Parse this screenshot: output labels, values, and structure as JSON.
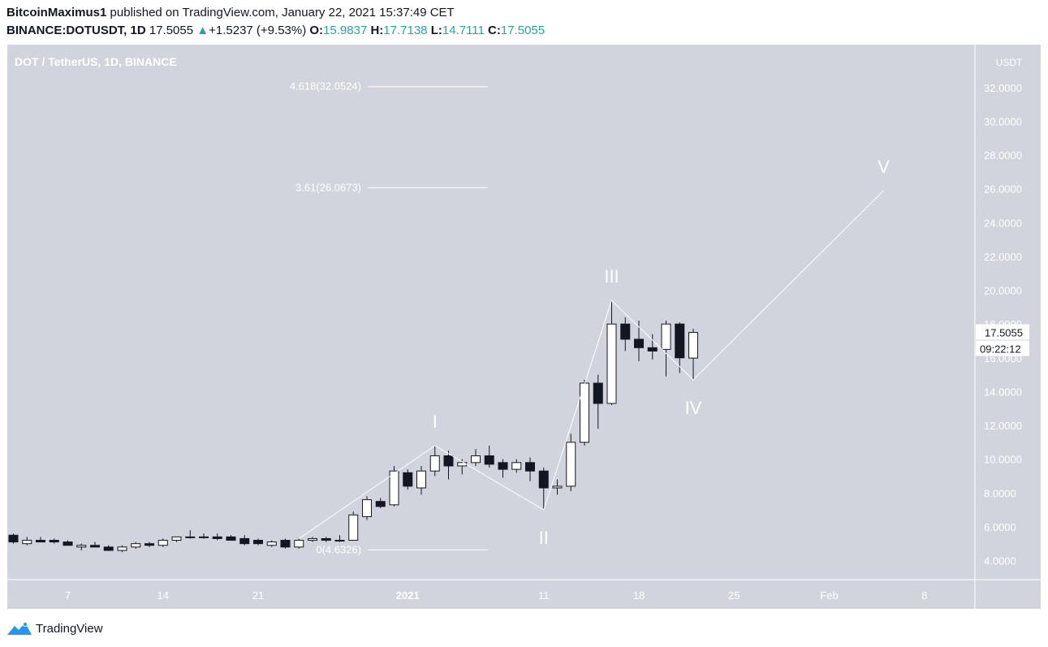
{
  "header": {
    "author": "BitcoinMaximus1",
    "published_text": "published on TradingView.com, January 22, 2021 15:37:49 CET",
    "symbol": "BINANCE:DOTUSDT, 1D",
    "last": "17.5055",
    "up_arrow": "▲",
    "change": "+1.5237 (+9.53%)",
    "o_label": "O:",
    "o_value": "15.9837",
    "h_label": "H:",
    "h_value": "17.7138",
    "l_label": "L:",
    "l_value": "14.7111",
    "c_label": "C:",
    "c_value": "17.5055"
  },
  "footer": {
    "brand": "TradingView",
    "logo_icon": "tradingview-logo-icon"
  },
  "colors": {
    "plot_bg": "#d1d4dc",
    "axis_bg": "#d1d4dc",
    "up": "#26a69a",
    "candle_up_fill": "#ffffff",
    "candle_down_fill": "#131722",
    "wave": "#ffffff"
  },
  "chart_data": {
    "type": "candlestick",
    "title": "DOT / TetherUS, 1D, BINANCE",
    "currency": "USDT",
    "y_ticks": [
      "4.0000",
      "6.0000",
      "8.0000",
      "10.0000",
      "12.0000",
      "14.0000",
      "16.0000",
      "18.0000",
      "20.0000",
      "22.0000",
      "24.0000",
      "26.0000",
      "28.0000",
      "30.0000",
      "32.0000"
    ],
    "x_ticks": [
      "7",
      "14",
      "21",
      "2021",
      "11",
      "18",
      "25",
      "Feb",
      "8"
    ],
    "ylim": [
      3.0,
      35.0
    ],
    "last_price": "17.5055",
    "countdown": "09:22:12",
    "candles": [
      {
        "date": "2020-12-02",
        "o": 5.5,
        "h": 5.7,
        "l": 5.3,
        "c": 5.5
      },
      {
        "date": "2020-12-03",
        "o": 5.5,
        "h": 5.6,
        "l": 5.0,
        "c": 5.1
      },
      {
        "date": "2020-12-04",
        "o": 5.0,
        "h": 5.4,
        "l": 4.9,
        "c": 5.2
      },
      {
        "date": "2020-12-05",
        "o": 5.2,
        "h": 5.4,
        "l": 5.1,
        "c": 5.1
      },
      {
        "date": "2020-12-06",
        "o": 5.2,
        "h": 5.3,
        "l": 5.0,
        "c": 5.1
      },
      {
        "date": "2020-12-07",
        "o": 5.1,
        "h": 5.2,
        "l": 4.9,
        "c": 4.9
      },
      {
        "date": "2020-12-08",
        "o": 4.8,
        "h": 5.0,
        "l": 4.6,
        "c": 4.9
      },
      {
        "date": "2020-12-09",
        "o": 4.9,
        "h": 5.1,
        "l": 4.8,
        "c": 4.8
      },
      {
        "date": "2020-12-10",
        "o": 4.8,
        "h": 4.9,
        "l": 4.6,
        "c": 4.6
      },
      {
        "date": "2020-12-11",
        "o": 4.6,
        "h": 4.9,
        "l": 4.5,
        "c": 4.8
      },
      {
        "date": "2020-12-12",
        "o": 4.8,
        "h": 5.1,
        "l": 4.7,
        "c": 5.0
      },
      {
        "date": "2020-12-13",
        "o": 5.0,
        "h": 5.1,
        "l": 4.8,
        "c": 4.9
      },
      {
        "date": "2020-12-14",
        "o": 4.9,
        "h": 5.3,
        "l": 4.8,
        "c": 5.2
      },
      {
        "date": "2020-12-15",
        "o": 5.2,
        "h": 5.4,
        "l": 5.1,
        "c": 5.4
      },
      {
        "date": "2020-12-16",
        "o": 5.4,
        "h": 5.8,
        "l": 5.3,
        "c": 5.4
      },
      {
        "date": "2020-12-17",
        "o": 5.4,
        "h": 5.6,
        "l": 5.3,
        "c": 5.4
      },
      {
        "date": "2020-12-18",
        "o": 5.4,
        "h": 5.6,
        "l": 5.2,
        "c": 5.3
      },
      {
        "date": "2020-12-19",
        "o": 5.4,
        "h": 5.5,
        "l": 5.2,
        "c": 5.2
      },
      {
        "date": "2020-12-20",
        "o": 5.3,
        "h": 5.5,
        "l": 4.9,
        "c": 5.0
      },
      {
        "date": "2020-12-21",
        "o": 5.2,
        "h": 5.3,
        "l": 4.9,
        "c": 5.0
      },
      {
        "date": "2020-12-22",
        "o": 4.9,
        "h": 5.2,
        "l": 4.8,
        "c": 5.1
      },
      {
        "date": "2020-12-23",
        "o": 5.2,
        "h": 5.3,
        "l": 4.7,
        "c": 4.8
      },
      {
        "date": "2020-12-24",
        "o": 4.8,
        "h": 5.3,
        "l": 4.7,
        "c": 5.2
      },
      {
        "date": "2020-12-25",
        "o": 5.2,
        "h": 5.4,
        "l": 5.1,
        "c": 5.3
      },
      {
        "date": "2020-12-26",
        "o": 5.3,
        "h": 5.4,
        "l": 5.1,
        "c": 5.2
      },
      {
        "date": "2020-12-27",
        "o": 5.2,
        "h": 5.5,
        "l": 5.1,
        "c": 5.2
      },
      {
        "date": "2020-12-28",
        "o": 5.2,
        "h": 6.9,
        "l": 5.2,
        "c": 6.7
      },
      {
        "date": "2020-12-29",
        "o": 6.6,
        "h": 7.8,
        "l": 6.4,
        "c": 7.6
      },
      {
        "date": "2020-12-30",
        "o": 7.5,
        "h": 7.7,
        "l": 7.1,
        "c": 7.2
      },
      {
        "date": "2020-12-31",
        "o": 7.3,
        "h": 9.6,
        "l": 7.2,
        "c": 9.3
      },
      {
        "date": "2021-01-01",
        "o": 9.2,
        "h": 9.4,
        "l": 8.2,
        "c": 8.4
      },
      {
        "date": "2021-01-02",
        "o": 8.3,
        "h": 9.6,
        "l": 7.9,
        "c": 9.3
      },
      {
        "date": "2021-01-03",
        "o": 9.3,
        "h": 10.8,
        "l": 9.0,
        "c": 10.2
      },
      {
        "date": "2021-01-04",
        "o": 10.2,
        "h": 10.5,
        "l": 8.8,
        "c": 9.6
      },
      {
        "date": "2021-01-05",
        "o": 9.6,
        "h": 10.0,
        "l": 9.1,
        "c": 9.8
      },
      {
        "date": "2021-01-06",
        "o": 9.8,
        "h": 10.6,
        "l": 9.6,
        "c": 10.2
      },
      {
        "date": "2021-01-07",
        "o": 10.2,
        "h": 10.8,
        "l": 9.5,
        "c": 9.7
      },
      {
        "date": "2021-01-08",
        "o": 9.8,
        "h": 10.0,
        "l": 8.9,
        "c": 9.4
      },
      {
        "date": "2021-01-09",
        "o": 9.4,
        "h": 10.0,
        "l": 9.2,
        "c": 9.8
      },
      {
        "date": "2021-01-10",
        "o": 9.8,
        "h": 10.1,
        "l": 8.7,
        "c": 9.3
      },
      {
        "date": "2021-01-11",
        "o": 9.3,
        "h": 9.5,
        "l": 7.0,
        "c": 8.3
      },
      {
        "date": "2021-01-12",
        "o": 8.3,
        "h": 8.8,
        "l": 7.9,
        "c": 8.4
      },
      {
        "date": "2021-01-13",
        "o": 8.4,
        "h": 11.5,
        "l": 8.1,
        "c": 11.0
      },
      {
        "date": "2021-01-14",
        "o": 11.0,
        "h": 14.7,
        "l": 10.8,
        "c": 14.5
      },
      {
        "date": "2021-01-15",
        "o": 14.5,
        "h": 15.0,
        "l": 11.8,
        "c": 13.3
      },
      {
        "date": "2021-01-16",
        "o": 13.3,
        "h": 19.4,
        "l": 13.2,
        "c": 18.0
      },
      {
        "date": "2021-01-17",
        "o": 18.0,
        "h": 18.4,
        "l": 16.4,
        "c": 17.1
      },
      {
        "date": "2021-01-18",
        "o": 17.1,
        "h": 18.2,
        "l": 15.8,
        "c": 16.6
      },
      {
        "date": "2021-01-19",
        "o": 16.6,
        "h": 17.4,
        "l": 15.9,
        "c": 16.4
      },
      {
        "date": "2021-01-20",
        "o": 16.5,
        "h": 18.2,
        "l": 14.9,
        "c": 18.0
      },
      {
        "date": "2021-01-21",
        "o": 18.0,
        "h": 18.1,
        "l": 15.1,
        "c": 16.0
      },
      {
        "date": "2021-01-22",
        "o": 15.9837,
        "h": 17.7138,
        "l": 14.7111,
        "c": 17.5055
      }
    ],
    "fib_levels": [
      {
        "label": "4.618(32.0524)",
        "value": 32.0524
      },
      {
        "label": "3.61(26.0673)",
        "value": 26.0673
      },
      {
        "label": "0(4.6326)",
        "value": 4.6326
      }
    ],
    "wave_points": [
      {
        "label": "",
        "date": "2020-12-24",
        "price": 5.3
      },
      {
        "label": "I",
        "date": "2021-01-03",
        "price": 10.8
      },
      {
        "label": "II",
        "date": "2021-01-11",
        "price": 7.0
      },
      {
        "label": "III",
        "date": "2021-01-16",
        "price": 19.4
      },
      {
        "label": "IV",
        "date": "2021-01-22",
        "price": 14.7
      },
      {
        "label": "V",
        "date": "2021-02-05",
        "price": 25.9
      }
    ]
  }
}
